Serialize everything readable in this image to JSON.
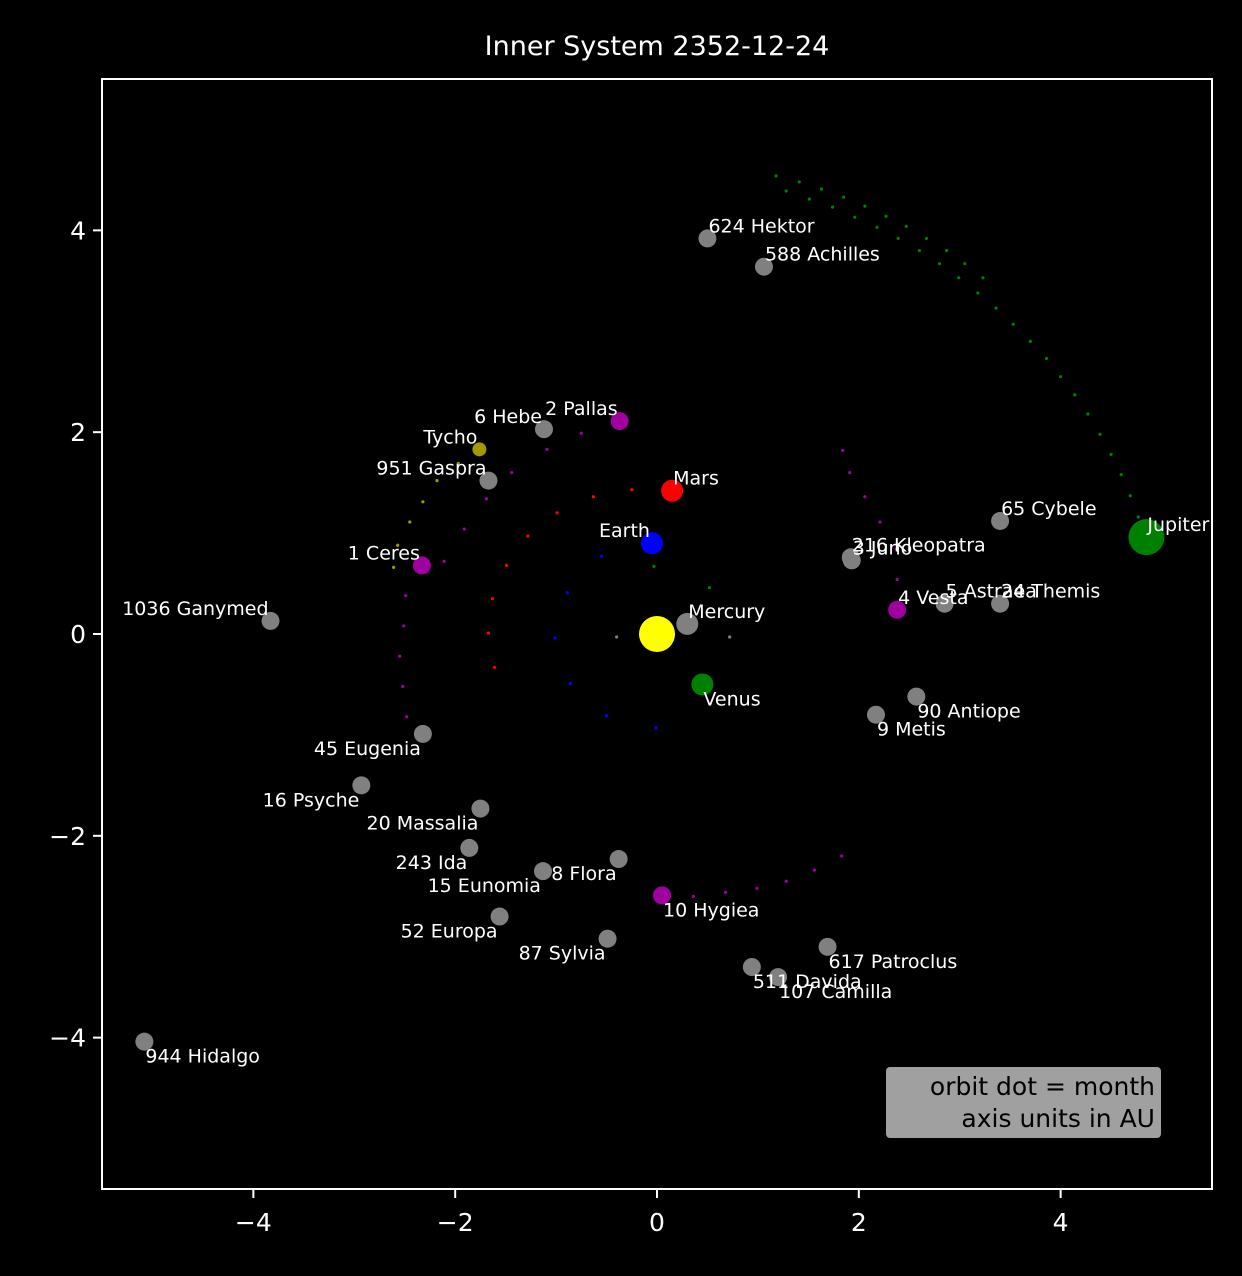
{
  "chart_data": {
    "type": "scatter",
    "title": "Inner System 2352-12-24",
    "xlabel": "",
    "ylabel": "",
    "xlim": [
      -5.5,
      5.5
    ],
    "ylim": [
      -5.5,
      5.5
    ],
    "xticks": [
      -4,
      -2,
      0,
      2,
      4
    ],
    "yticks": [
      -4,
      -2,
      0,
      2,
      4
    ],
    "xtick_labels": [
      "−4",
      "−2",
      "0",
      "2",
      "4"
    ],
    "ytick_labels": [
      "−4",
      "−2",
      "0",
      "2",
      "4"
    ],
    "grid": false,
    "background": "#000000",
    "legend_box": {
      "lines": [
        "orbit dot = month",
        "axis units in AU"
      ],
      "placement": "bottom-right",
      "color": "#a0a0a0"
    },
    "sun": {
      "x": 0.0,
      "y": 0.0,
      "color": "#ffff00"
    },
    "bodies": [
      {
        "name": "Mercury",
        "x": 0.3,
        "y": 0.1,
        "color": "#808080",
        "kind": "planet",
        "label_pos": "right-up"
      },
      {
        "name": "Venus",
        "x": 0.45,
        "y": -0.5,
        "color": "#008000",
        "kind": "planet",
        "label_pos": "right-down"
      },
      {
        "name": "Earth",
        "x": -0.05,
        "y": 0.9,
        "color": "#0000ff",
        "kind": "planet",
        "label_pos": "left-up"
      },
      {
        "name": "Mars",
        "x": 0.15,
        "y": 1.42,
        "color": "#ff0000",
        "kind": "planet",
        "label_pos": "right-up"
      },
      {
        "name": "Jupiter",
        "x": 4.85,
        "y": 0.96,
        "color": "#008000",
        "kind": "giant",
        "label_pos": "right-up"
      },
      {
        "name": "1 Ceres",
        "x": -2.33,
        "y": 0.68,
        "color": "#a000a0",
        "kind": "dwarf",
        "label_pos": "left-up"
      },
      {
        "name": "2 Pallas",
        "x": -0.37,
        "y": 2.11,
        "color": "#a000a0",
        "kind": "dwarf",
        "label_pos": "left-up"
      },
      {
        "name": "4 Vesta",
        "x": 2.38,
        "y": 0.24,
        "color": "#a000a0",
        "kind": "dwarf",
        "label_pos": "right-up"
      },
      {
        "name": "10 Hygiea",
        "x": 0.05,
        "y": -2.59,
        "color": "#a000a0",
        "kind": "dwarf",
        "label_pos": "right-down"
      },
      {
        "name": "Tycho",
        "x": -1.76,
        "y": 1.83,
        "color": "#a09a00",
        "kind": "small",
        "label_pos": "left-up"
      },
      {
        "name": "3 Juno",
        "x": 1.93,
        "y": 0.73,
        "color": "#808080",
        "kind": "asteroid",
        "label_pos": "right-up"
      },
      {
        "name": "5 Astraea",
        "x": 2.85,
        "y": 0.3,
        "color": "#808080",
        "kind": "asteroid",
        "label_pos": "right-up"
      },
      {
        "name": "6 Hebe",
        "x": -1.12,
        "y": 2.03,
        "color": "#808080",
        "kind": "asteroid",
        "label_pos": "left-up"
      },
      {
        "name": "8 Flora",
        "x": -0.38,
        "y": -2.23,
        "color": "#808080",
        "kind": "asteroid",
        "label_pos": "left-down"
      },
      {
        "name": "9 Metis",
        "x": 2.17,
        "y": -0.8,
        "color": "#808080",
        "kind": "asteroid",
        "label_pos": "right-down"
      },
      {
        "name": "15 Eunomia",
        "x": -1.13,
        "y": -2.35,
        "color": "#808080",
        "kind": "asteroid",
        "label_pos": "left-down"
      },
      {
        "name": "16 Psyche",
        "x": -2.93,
        "y": -1.5,
        "color": "#808080",
        "kind": "asteroid",
        "label_pos": "left-down"
      },
      {
        "name": "20 Massalia",
        "x": -1.75,
        "y": -1.73,
        "color": "#808080",
        "kind": "asteroid",
        "label_pos": "left-down"
      },
      {
        "name": "24 Themis",
        "x": 3.4,
        "y": 0.3,
        "color": "#808080",
        "kind": "asteroid",
        "label_pos": "right-up"
      },
      {
        "name": "45 Eugenia",
        "x": -2.32,
        "y": -0.99,
        "color": "#808080",
        "kind": "asteroid",
        "label_pos": "left-down"
      },
      {
        "name": "52 Europa",
        "x": -1.56,
        "y": -2.8,
        "color": "#808080",
        "kind": "asteroid",
        "label_pos": "left-down"
      },
      {
        "name": "65 Cybele",
        "x": 3.4,
        "y": 1.12,
        "color": "#808080",
        "kind": "asteroid",
        "label_pos": "right-up"
      },
      {
        "name": "87 Sylvia",
        "x": -0.49,
        "y": -3.02,
        "color": "#808080",
        "kind": "asteroid",
        "label_pos": "left-down"
      },
      {
        "name": "90 Antiope",
        "x": 2.57,
        "y": -0.62,
        "color": "#808080",
        "kind": "asteroid",
        "label_pos": "right-down"
      },
      {
        "name": "107 Camilla",
        "x": 1.2,
        "y": -3.4,
        "color": "#808080",
        "kind": "asteroid",
        "label_pos": "right-down"
      },
      {
        "name": "216 Kleopatra",
        "x": 1.92,
        "y": 0.76,
        "color": "#808080",
        "kind": "asteroid",
        "label_pos": "right-up"
      },
      {
        "name": "243 Ida",
        "x": -1.86,
        "y": -2.12,
        "color": "#808080",
        "kind": "asteroid",
        "label_pos": "left-down"
      },
      {
        "name": "511 Davida",
        "x": 0.94,
        "y": -3.3,
        "color": "#808080",
        "kind": "asteroid",
        "label_pos": "right-down"
      },
      {
        "name": "588 Achilles",
        "x": 1.06,
        "y": 3.64,
        "color": "#808080",
        "kind": "asteroid",
        "label_pos": "right-up"
      },
      {
        "name": "617 Patroclus",
        "x": 1.69,
        "y": -3.1,
        "color": "#808080",
        "kind": "asteroid",
        "label_pos": "right-down"
      },
      {
        "name": "624 Hektor",
        "x": 0.5,
        "y": 3.92,
        "color": "#808080",
        "kind": "asteroid",
        "label_pos": "right-up"
      },
      {
        "name": "944 Hidalgo",
        "x": -5.08,
        "y": -4.04,
        "color": "#808080",
        "kind": "asteroid",
        "label_pos": "right-down"
      },
      {
        "name": "951 Gaspra",
        "x": -1.67,
        "y": 1.52,
        "color": "#808080",
        "kind": "asteroid",
        "label_pos": "left-up"
      },
      {
        "name": "1036 Ganymed",
        "x": -3.83,
        "y": 0.13,
        "color": "#808080",
        "kind": "asteroid",
        "label_pos": "left-up"
      }
    ],
    "orbit_trails": [
      {
        "body": "Mercury",
        "color": "#808080",
        "points": [
          [
            -0.4,
            -0.03
          ],
          [
            0.72,
            -0.03
          ]
        ]
      },
      {
        "body": "Venus",
        "color": "#008000",
        "points": [
          [
            -0.03,
            0.67
          ],
          [
            0.52,
            0.46
          ]
        ]
      },
      {
        "body": "Earth",
        "color": "#0000ff",
        "points": [
          [
            -0.55,
            0.77
          ],
          [
            -0.89,
            0.41
          ],
          [
            -1.01,
            -0.04
          ],
          [
            -0.86,
            -0.49
          ],
          [
            -0.5,
            -0.81
          ],
          [
            -0.01,
            -0.93
          ]
        ]
      },
      {
        "body": "Mars",
        "color": "#ff0000",
        "points": [
          [
            -0.25,
            1.43
          ],
          [
            -0.63,
            1.36
          ],
          [
            -0.99,
            1.2
          ],
          [
            -1.28,
            0.97
          ],
          [
            -1.49,
            0.68
          ],
          [
            -1.63,
            0.35
          ],
          [
            -1.67,
            0.01
          ],
          [
            -1.61,
            -0.33
          ]
        ]
      },
      {
        "body": "Jupiter",
        "color": "#008000",
        "points": [
          [
            4.77,
            1.16
          ],
          [
            4.69,
            1.37
          ],
          [
            4.6,
            1.58
          ],
          [
            4.5,
            1.78
          ],
          [
            4.39,
            1.98
          ],
          [
            4.27,
            2.18
          ],
          [
            4.14,
            2.37
          ],
          [
            4.0,
            2.55
          ],
          [
            3.86,
            2.73
          ],
          [
            3.7,
            2.9
          ],
          [
            3.53,
            3.07
          ],
          [
            3.36,
            3.23
          ],
          [
            3.18,
            3.38
          ],
          [
            2.99,
            3.53
          ],
          [
            2.8,
            3.67
          ],
          [
            2.6,
            3.8
          ],
          [
            2.39,
            3.92
          ],
          [
            2.18,
            4.03
          ],
          [
            1.96,
            4.13
          ],
          [
            1.74,
            4.23
          ],
          [
            1.51,
            4.31
          ],
          [
            1.28,
            4.39
          ],
          [
            1.18,
            4.54
          ],
          [
            1.41,
            4.48
          ],
          [
            1.63,
            4.41
          ],
          [
            1.85,
            4.33
          ],
          [
            2.06,
            4.24
          ],
          [
            2.27,
            4.14
          ],
          [
            2.47,
            4.04
          ],
          [
            2.67,
            3.92
          ],
          [
            2.87,
            3.8
          ],
          [
            3.05,
            3.67
          ],
          [
            3.23,
            3.53
          ]
        ]
      },
      {
        "body": "1 Ceres",
        "color": "#a000a0",
        "points": [
          [
            -2.11,
            0.72
          ],
          [
            -1.91,
            1.04
          ],
          [
            -1.69,
            1.34
          ],
          [
            -1.44,
            1.6
          ],
          [
            -1.09,
            1.83
          ],
          [
            -0.75,
            1.99
          ],
          [
            -2.49,
            0.38
          ],
          [
            -2.51,
            0.08
          ],
          [
            -2.55,
            -0.22
          ],
          [
            -2.52,
            -0.52
          ],
          [
            -2.48,
            -0.82
          ]
        ]
      },
      {
        "body": "2 Pallas",
        "color": "#a000a0",
        "points": [
          [
            1.84,
            1.82
          ],
          [
            1.91,
            1.6
          ],
          [
            2.06,
            1.36
          ],
          [
            2.21,
            1.11
          ],
          [
            2.37,
            0.84
          ],
          [
            2.38,
            0.54
          ]
        ]
      },
      {
        "body": "10 Hygiea",
        "color": "#a000a0",
        "points": [
          [
            0.36,
            -2.6
          ],
          [
            0.68,
            -2.56
          ],
          [
            0.99,
            -2.52
          ],
          [
            1.28,
            -2.45
          ],
          [
            1.56,
            -2.34
          ],
          [
            1.83,
            -2.2
          ]
        ]
      },
      {
        "body": "Tycho",
        "color": "#a09a00",
        "points": [
          [
            -2.18,
            1.52
          ],
          [
            -2.32,
            1.31
          ],
          [
            -2.45,
            1.11
          ],
          [
            -2.57,
            0.88
          ],
          [
            -2.61,
            0.66
          ],
          [
            -1.97,
            1.69
          ]
        ]
      }
    ]
  }
}
